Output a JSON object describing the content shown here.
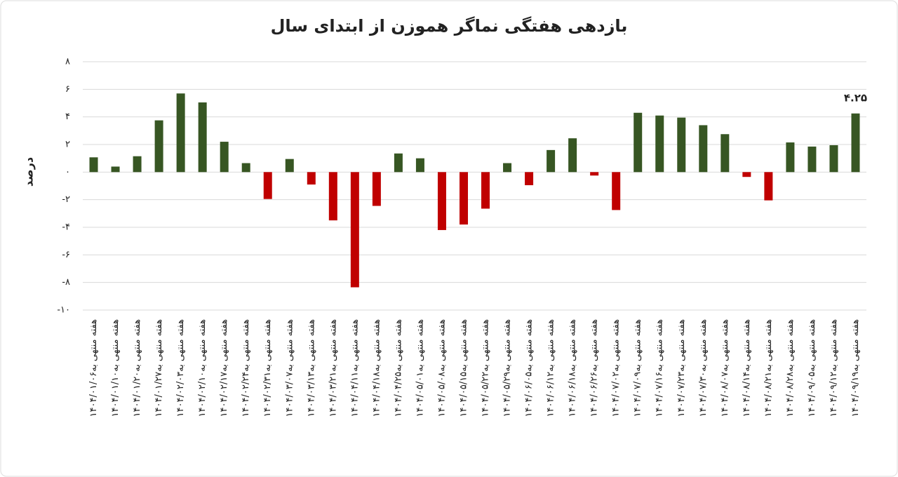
{
  "chart_data": {
    "type": "bar",
    "title": "بازدهی هفتگی نماگر هموزن از ابتدای سال",
    "y_label": "درصد",
    "categories": [
      "هفته منتهی به۱۴۰۴/۰۱/۰۶",
      "هفته منتهی به۱۴۰۴/۰۱/۱۰",
      "هفته منتهی به۱۴۰۴/۰۱/۲۰",
      "هفته منتهی به۱۴۰۴/۰۱/۲۷",
      "هفته منتهی به۱۴۰۴/۰۲/۰۳",
      "هفته منتهی به۱۴۰۴/۰۲/۱۰",
      "هفته منتهی به۱۴۰۴/۰۲/۱۷",
      "هفته منتهی به۱۴۰۴/۰۲/۲۴",
      "هفته منتهی به۱۴۰۴/۰۲/۳۱",
      "هفته منتهی به۱۴۰۴/۰۳/۰۷",
      "هفته منتهی به۱۴۰۴/۰۳/۱۳",
      "هفته منتهی به۱۴۰۴/۰۳/۲۱",
      "هفته منتهی به۱۴۰۴/۰۴/۱۱",
      "هفته منتهی به۱۴۰۴/۰۴/۱۸",
      "هفته منتهی به۱۴۰۴/۰۴/۲۵",
      "هفته منتهی به۱۴۰۴/۰۵/۰۱",
      "هفته منتهی به۱۴۰۴/۰۵/۰۸",
      "هفته منتهی به۱۴۰۴/۰۵/۱۵",
      "هفته منتهی به۱۴۰۴/۰۵/۲۲",
      "هفته منتهی به۱۴۰۴/۰۵/۲۹",
      "هفته منتهی به۱۴۰۴/۰۶/۰۵",
      "هفته منتهی به۱۴۰۴/۰۶/۱۲",
      "هفته منتهی به۱۴۰۴/۰۶/۱۸",
      "هفته منتهی به۱۴۰۴/۰۶/۲۶",
      "هفته منتهی به۱۴۰۴/۰۷/۰۲",
      "هفته منتهی به۱۴۰۴/۰۷/۰۹",
      "هفته منتهی به۱۴۰۴/۰۷/۱۶",
      "هفته منتهی به۱۴۰۴/۰۷/۲۳",
      "هفته منتهی به۱۴۰۴/۰۷/۳۰",
      "هفته منتهی به۱۴۰۴/۰۸/۰۷",
      "هفته منتهی به۱۴۰۴/۰۸/۱۴",
      "هفته منتهی به۱۴۰۴/۰۸/۲۱",
      "هفته منتهی به۱۴۰۴/۰۸/۲۸",
      "هفته منتهی به۱۴۰۴/۰۹/۰۵",
      "هفته منتهی به۱۴۰۴/۰۹/۱۲",
      "هفته منتهی به۱۴۰۴/۰۹/۱۹"
    ],
    "values": [
      1.07,
      0.4,
      1.15,
      3.75,
      5.7,
      5.05,
      2.2,
      0.65,
      -1.95,
      0.95,
      -0.9,
      -3.5,
      -8.35,
      -2.45,
      1.35,
      1.0,
      -4.2,
      -3.8,
      -2.65,
      0.65,
      -0.95,
      1.6,
      2.45,
      -0.25,
      -2.75,
      4.3,
      4.1,
      3.95,
      3.4,
      2.75,
      -0.35,
      -2.05,
      2.15,
      1.85,
      1.95,
      4.25
    ],
    "value_labels": [
      null,
      null,
      null,
      null,
      null,
      null,
      null,
      null,
      null,
      null,
      null,
      null,
      null,
      null,
      null,
      null,
      null,
      null,
      null,
      null,
      null,
      null,
      null,
      null,
      null,
      null,
      null,
      null,
      null,
      null,
      null,
      null,
      null,
      null,
      null,
      "۴.۲۵"
    ],
    "positive_color": "#375623",
    "negative_color": "#c00000",
    "ylim": [
      -10,
      8
    ],
    "yticks": [
      {
        "value": -10,
        "label": "-۱۰"
      },
      {
        "value": -8,
        "label": "-۸"
      },
      {
        "value": -6,
        "label": "-۶"
      },
      {
        "value": -4,
        "label": "-۴"
      },
      {
        "value": -2,
        "label": "-۲"
      },
      {
        "value": 0,
        "label": "۰"
      },
      {
        "value": 2,
        "label": "۲"
      },
      {
        "value": 4,
        "label": "۴"
      },
      {
        "value": 6,
        "label": "۶"
      },
      {
        "value": 8,
        "label": "۸"
      }
    ],
    "grid": true
  }
}
